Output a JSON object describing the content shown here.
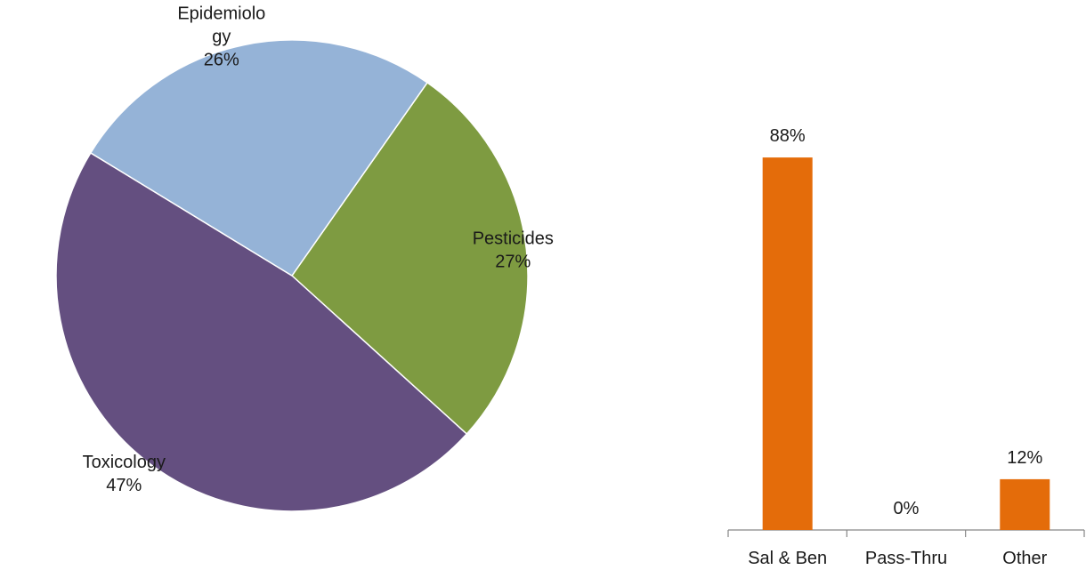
{
  "chart_data": [
    {
      "type": "pie",
      "slices": [
        {
          "label_lines": [
            "Pesticides"
          ],
          "value": 27,
          "value_label": "27%",
          "color": "#7e9b41"
        },
        {
          "label_lines": [
            "Toxicology"
          ],
          "value": 47,
          "value_label": "47%",
          "color": "#644f80"
        },
        {
          "label_lines": [
            "Epidemiolo",
            "gy"
          ],
          "value": 26,
          "value_label": "26%",
          "color": "#95b3d7"
        }
      ]
    },
    {
      "type": "bar",
      "categories": [
        "Sal & Ben",
        "Pass-Thru",
        "Other"
      ],
      "values": [
        88,
        0,
        12
      ],
      "value_labels": [
        "88%",
        "0%",
        "12%"
      ],
      "bar_color": "#e46c0a",
      "axis_color": "#868686",
      "ylim": [
        0,
        100
      ]
    }
  ]
}
